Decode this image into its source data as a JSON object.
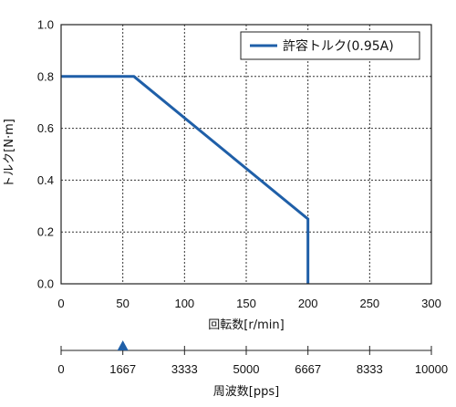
{
  "chart_data": {
    "type": "line",
    "xlabel": "回転数[r/min]",
    "ylabel": "トルク[N·m]",
    "xlim": [
      0,
      300
    ],
    "ylim": [
      0,
      1.0
    ],
    "x_ticks": [
      0,
      50,
      100,
      150,
      200,
      250,
      300
    ],
    "y_ticks": [
      0.0,
      0.2,
      0.4,
      0.6,
      0.8,
      1.0
    ],
    "y_tick_labels": [
      "0.0",
      "0.2",
      "0.4",
      "0.6",
      "0.8",
      "1.0"
    ],
    "grid": true,
    "legend_position": "top-right",
    "series": [
      {
        "name": "許容トルク(0.95A)",
        "color": "#1f5fa8",
        "x": [
          0,
          59,
          200,
          200
        ],
        "y": [
          0.8,
          0.8,
          0.25,
          0.0
        ]
      }
    ],
    "secondary_axis": {
      "label": "周波数[pps]",
      "ticks": [
        0,
        1667,
        3333,
        5000,
        6667,
        8333,
        10000
      ],
      "tick_labels": [
        "0",
        "1667",
        "3333",
        "5000",
        "6667",
        "8333",
        "10000"
      ],
      "range": [
        0,
        10000
      ],
      "marker_value": 1667,
      "marker_color": "#1f5fa8"
    }
  }
}
